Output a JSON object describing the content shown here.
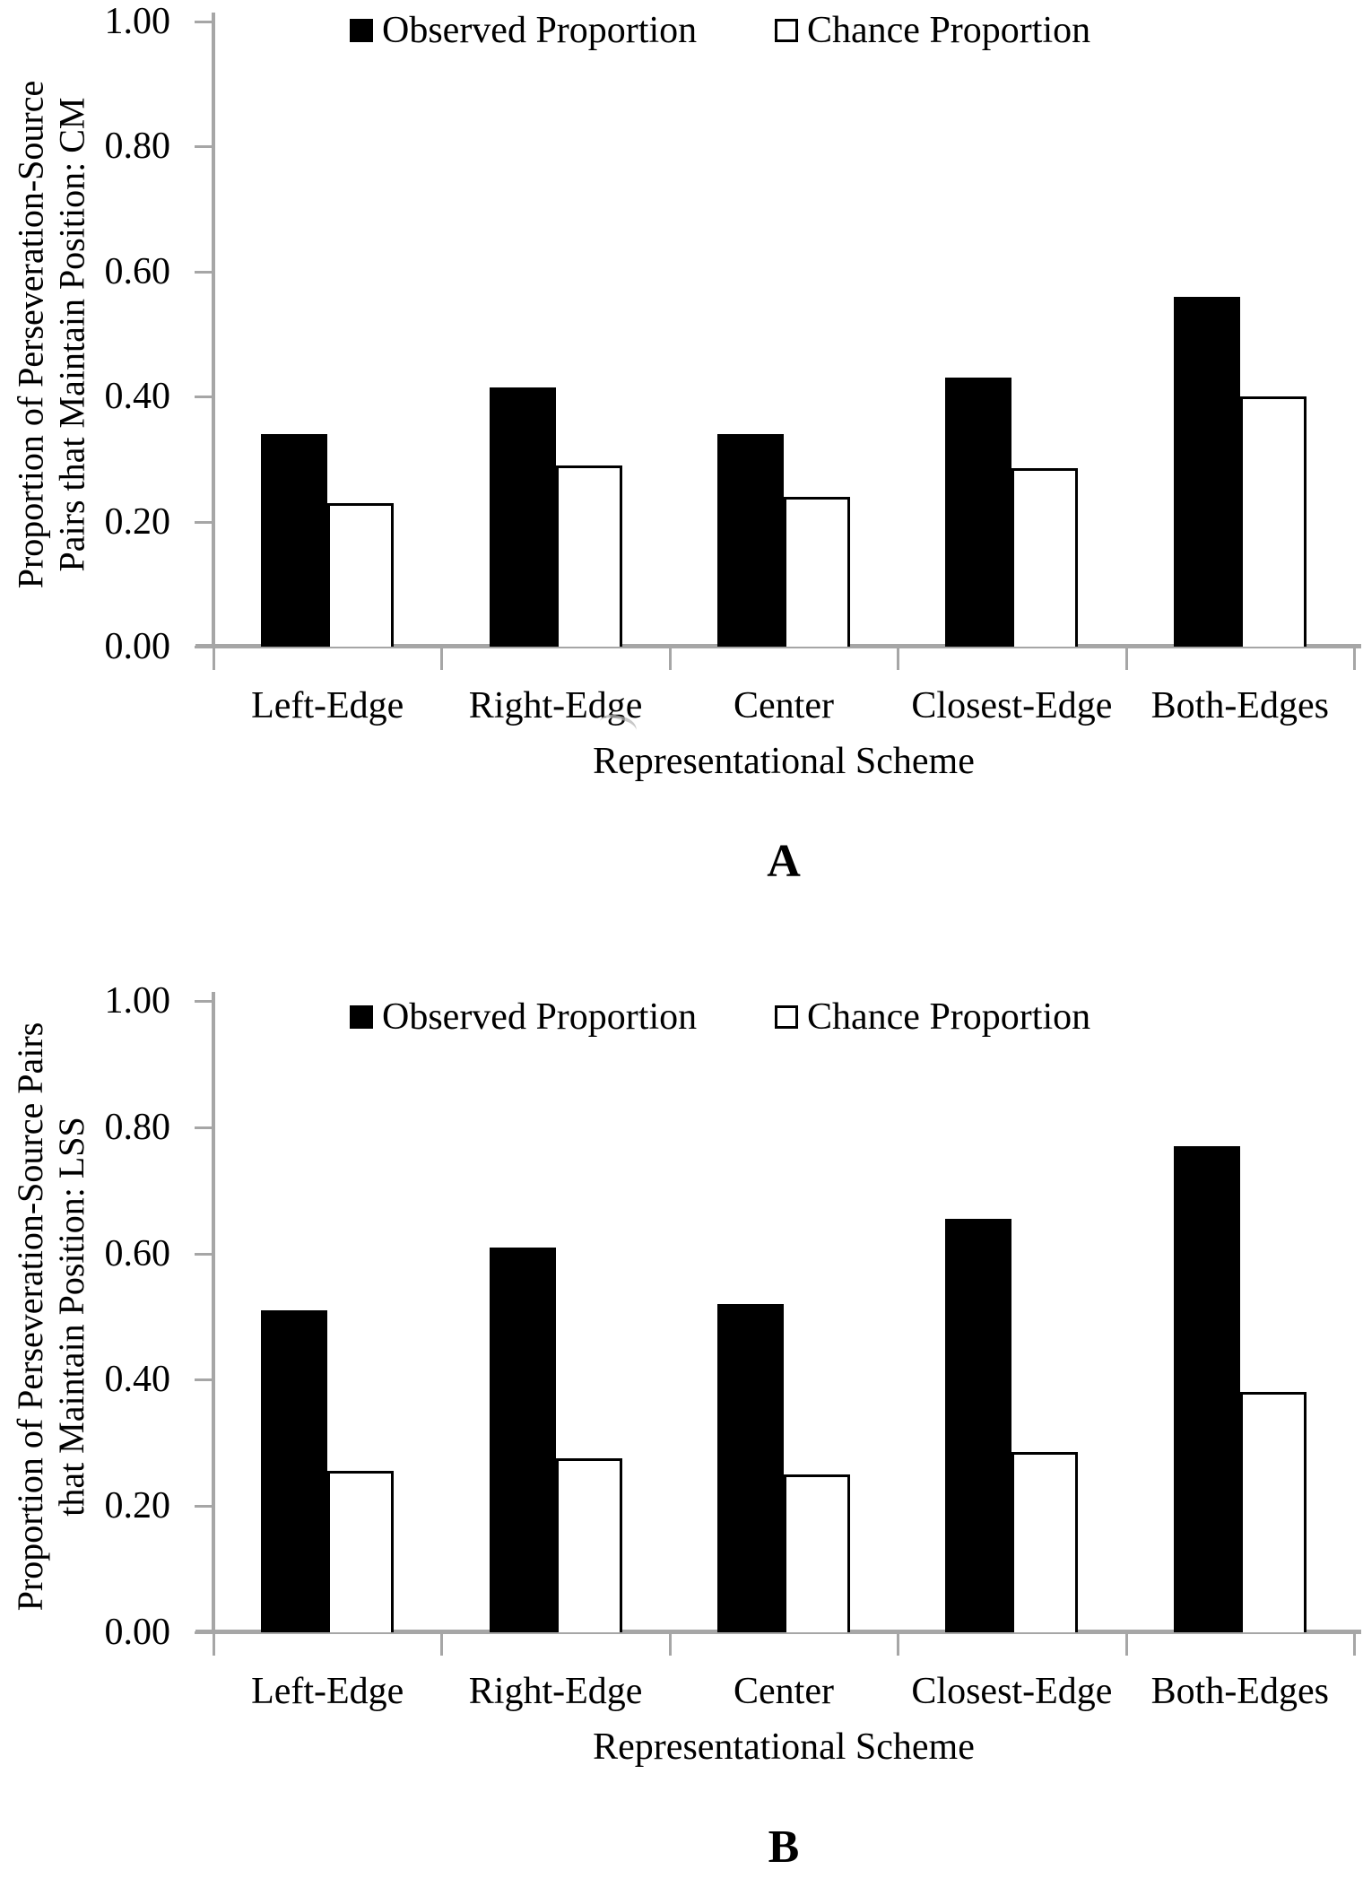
{
  "page_background": "#ffffff",
  "colors": {
    "axis_gray": "#a6a6a6",
    "text": "#000000",
    "observed_fill": "#000000",
    "chance_fill": "#ffffff",
    "chance_border": "#000000"
  },
  "chart_data": [
    {
      "type": "bar",
      "panel_label": "A",
      "title": "",
      "categories": [
        "Left-Edge",
        "Right-Edge",
        "Center",
        "Closest-Edge",
        "Both-Edges"
      ],
      "series": [
        {
          "name": "Observed Proportion",
          "values": [
            0.34,
            0.415,
            0.34,
            0.43,
            0.56
          ]
        },
        {
          "name": "Chance Proportion",
          "values": [
            0.23,
            0.29,
            0.24,
            0.285,
            0.4
          ]
        }
      ],
      "xlabel": "Representational Scheme",
      "ylabel": "Proportion of Perseveration-Source Pairs that Maintain Position: CM",
      "ylabel_lines": [
        "Proportion of Perseveration-Source",
        "Pairs that Maintain Position: CM"
      ],
      "ylim": [
        0,
        1
      ],
      "ytick_values": [
        0.0,
        0.2,
        0.4,
        0.6,
        0.8,
        1.0
      ],
      "ytick_labels": [
        "0.00",
        "0.20",
        "0.40",
        "0.60",
        "0.80",
        "1.00"
      ],
      "legend": [
        "Observed Proportion",
        "Chance Proportion"
      ],
      "legend_position": "top",
      "grid": false
    },
    {
      "type": "bar",
      "panel_label": "B",
      "title": "",
      "categories": [
        "Left-Edge",
        "Right-Edge",
        "Center",
        "Closest-Edge",
        "Both-Edges"
      ],
      "series": [
        {
          "name": "Observed Proportion",
          "values": [
            0.51,
            0.61,
            0.52,
            0.655,
            0.77
          ]
        },
        {
          "name": "Chance Proportion",
          "values": [
            0.255,
            0.275,
            0.25,
            0.285,
            0.38
          ]
        }
      ],
      "xlabel": "Representational Scheme",
      "ylabel": "Proportion of Perseveration-Source Pairs that Maintain Position: LSS",
      "ylabel_lines": [
        "Proportion of Perseveration-Source Pairs",
        "that Maintain Position: LSS"
      ],
      "ylim": [
        0,
        1
      ],
      "ytick_values": [
        0.0,
        0.2,
        0.4,
        0.6,
        0.8,
        1.0
      ],
      "ytick_labels": [
        "0.00",
        "0.20",
        "0.40",
        "0.60",
        "0.80",
        "1.00"
      ],
      "legend": [
        "Observed Proportion",
        "Chance Proportion"
      ],
      "legend_position": "top",
      "grid": false
    }
  ]
}
